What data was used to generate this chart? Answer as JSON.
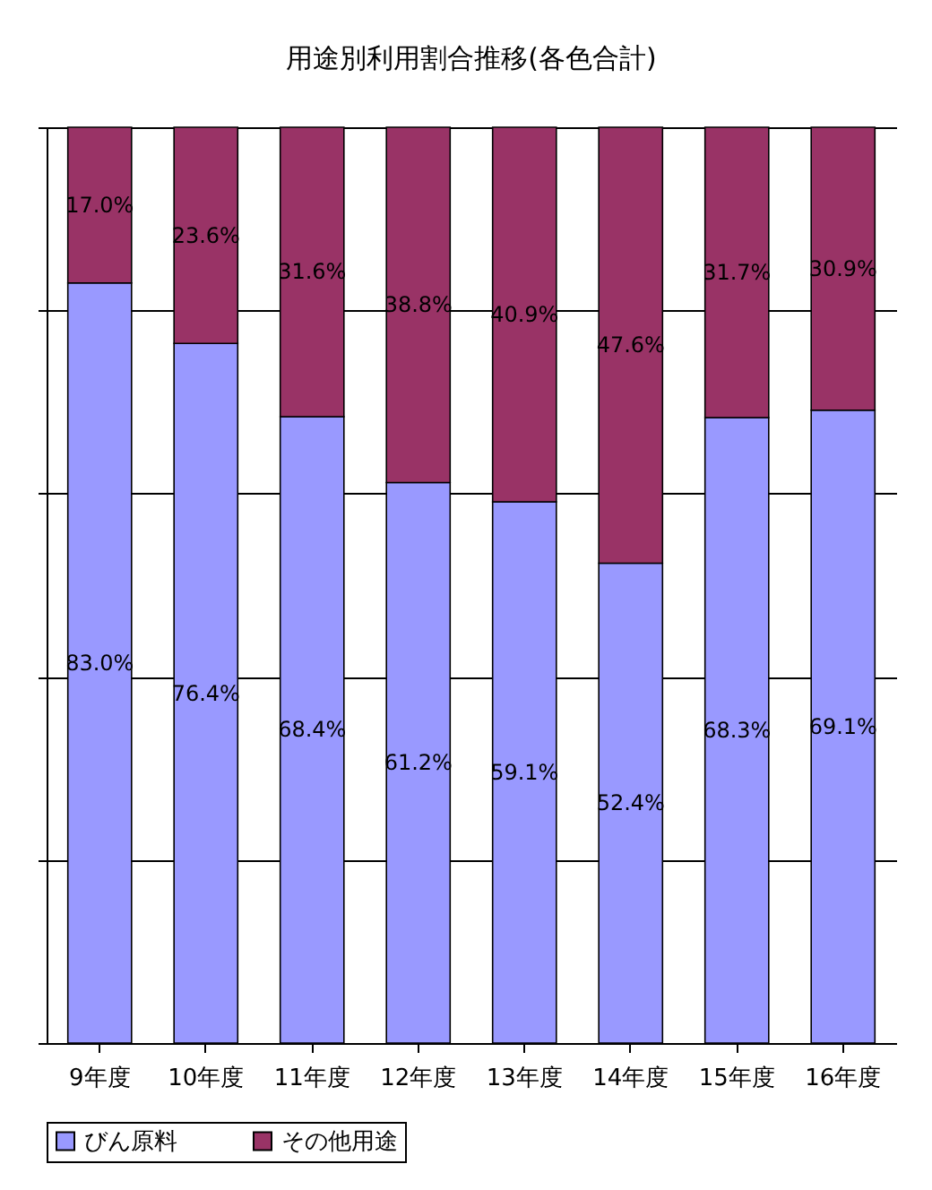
{
  "chart_data": {
    "type": "bar",
    "title": "用途別利用割合推移(各色合計)",
    "stacked": true,
    "categories": [
      "9年度",
      "10年度",
      "11年度",
      "12年度",
      "13年度",
      "14年度",
      "15年度",
      "16年度"
    ],
    "series": [
      {
        "name": "びん原料",
        "color": "#9999ff",
        "values": [
          83.0,
          76.4,
          68.4,
          61.2,
          59.1,
          52.4,
          68.3,
          69.1
        ],
        "value_labels": [
          "83.0%",
          "76.4%",
          "68.4%",
          "61.2%",
          "59.1%",
          "52.4%",
          "68.3%",
          "69.1%"
        ]
      },
      {
        "name": "その他用途",
        "color": "#993366",
        "values": [
          17.0,
          23.6,
          31.6,
          38.8,
          40.9,
          47.6,
          31.7,
          30.9
        ],
        "value_labels": [
          "17.0%",
          "23.6%",
          "31.6%",
          "38.8%",
          "40.9%",
          "47.6%",
          "31.7%",
          "30.9%"
        ]
      }
    ],
    "ylim": [
      0,
      100
    ],
    "yticks": [
      {
        "value": 0,
        "label": null
      },
      {
        "value": 20,
        "label": null
      },
      {
        "value": 40,
        "label": null
      },
      {
        "value": 60,
        "label": null
      },
      {
        "value": 80,
        "label": null
      },
      {
        "value": 100,
        "label": null
      }
    ],
    "tick_labels": "x",
    "grid": "y",
    "legend": "bottom"
  }
}
